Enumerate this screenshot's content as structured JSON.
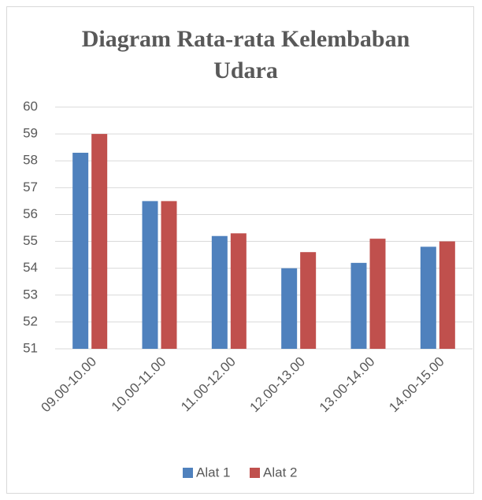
{
  "chart_data": {
    "type": "bar",
    "title": "Diagram Rata-rata Kelembaban Udara",
    "categories": [
      "09.00-10.00",
      "10.00-11.00",
      "11.00-12.00",
      "12.00-13.00",
      "13.00-14.00",
      "14.00-15.00"
    ],
    "series": [
      {
        "name": "Alat 1",
        "color": "#4f81bd",
        "values": [
          58.3,
          56.5,
          55.2,
          54.0,
          54.2,
          54.8
        ]
      },
      {
        "name": "Alat 2",
        "color": "#c0504d",
        "values": [
          59.0,
          56.5,
          55.3,
          54.6,
          55.1,
          55.0
        ]
      }
    ],
    "ylim": [
      51,
      60
    ],
    "yticks": [
      51,
      52,
      53,
      54,
      55,
      56,
      57,
      58,
      59,
      60
    ],
    "grid": true,
    "legend": "bottom"
  }
}
